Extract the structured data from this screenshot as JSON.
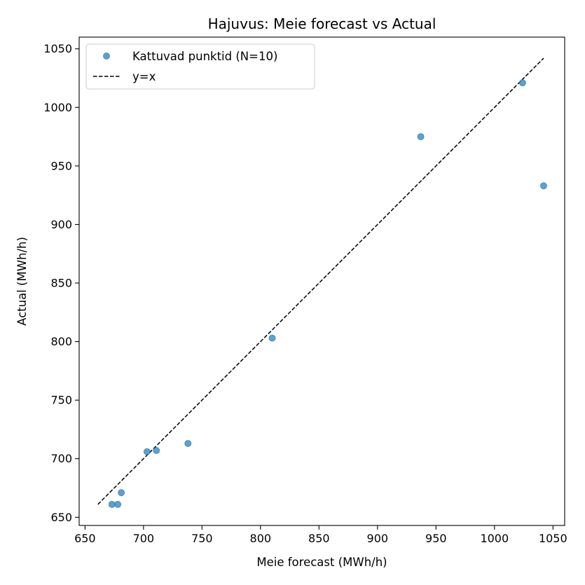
{
  "chart_data": {
    "type": "scatter",
    "title": "Hajuvus: Meie forecast vs Actual",
    "xlabel": "Meie forecast (MWh/h)",
    "ylabel": "Actual (MWh/h)",
    "xlim": [
      645,
      1060
    ],
    "ylim": [
      643,
      1060
    ],
    "xticks": [
      650,
      700,
      750,
      800,
      850,
      900,
      950,
      1000,
      1050
    ],
    "yticks": [
      650,
      700,
      750,
      800,
      850,
      900,
      950,
      1000,
      1050
    ],
    "grid": false,
    "legend_position": "upper-left",
    "series": [
      {
        "name": "Kattuvad punktid (N=10)",
        "kind": "scatter",
        "color": "#1f77b4",
        "points": [
          {
            "x": 673,
            "y": 661
          },
          {
            "x": 678,
            "y": 661
          },
          {
            "x": 681,
            "y": 671
          },
          {
            "x": 703,
            "y": 706
          },
          {
            "x": 711,
            "y": 707
          },
          {
            "x": 738,
            "y": 713
          },
          {
            "x": 810,
            "y": 803
          },
          {
            "x": 937,
            "y": 975
          },
          {
            "x": 1024,
            "y": 1021
          },
          {
            "x": 1042,
            "y": 933
          }
        ]
      },
      {
        "name": "y=x",
        "kind": "line",
        "style": "dashed",
        "color": "#000000",
        "points": [
          {
            "x": 661,
            "y": 661
          },
          {
            "x": 1042,
            "y": 1042
          }
        ]
      }
    ]
  }
}
